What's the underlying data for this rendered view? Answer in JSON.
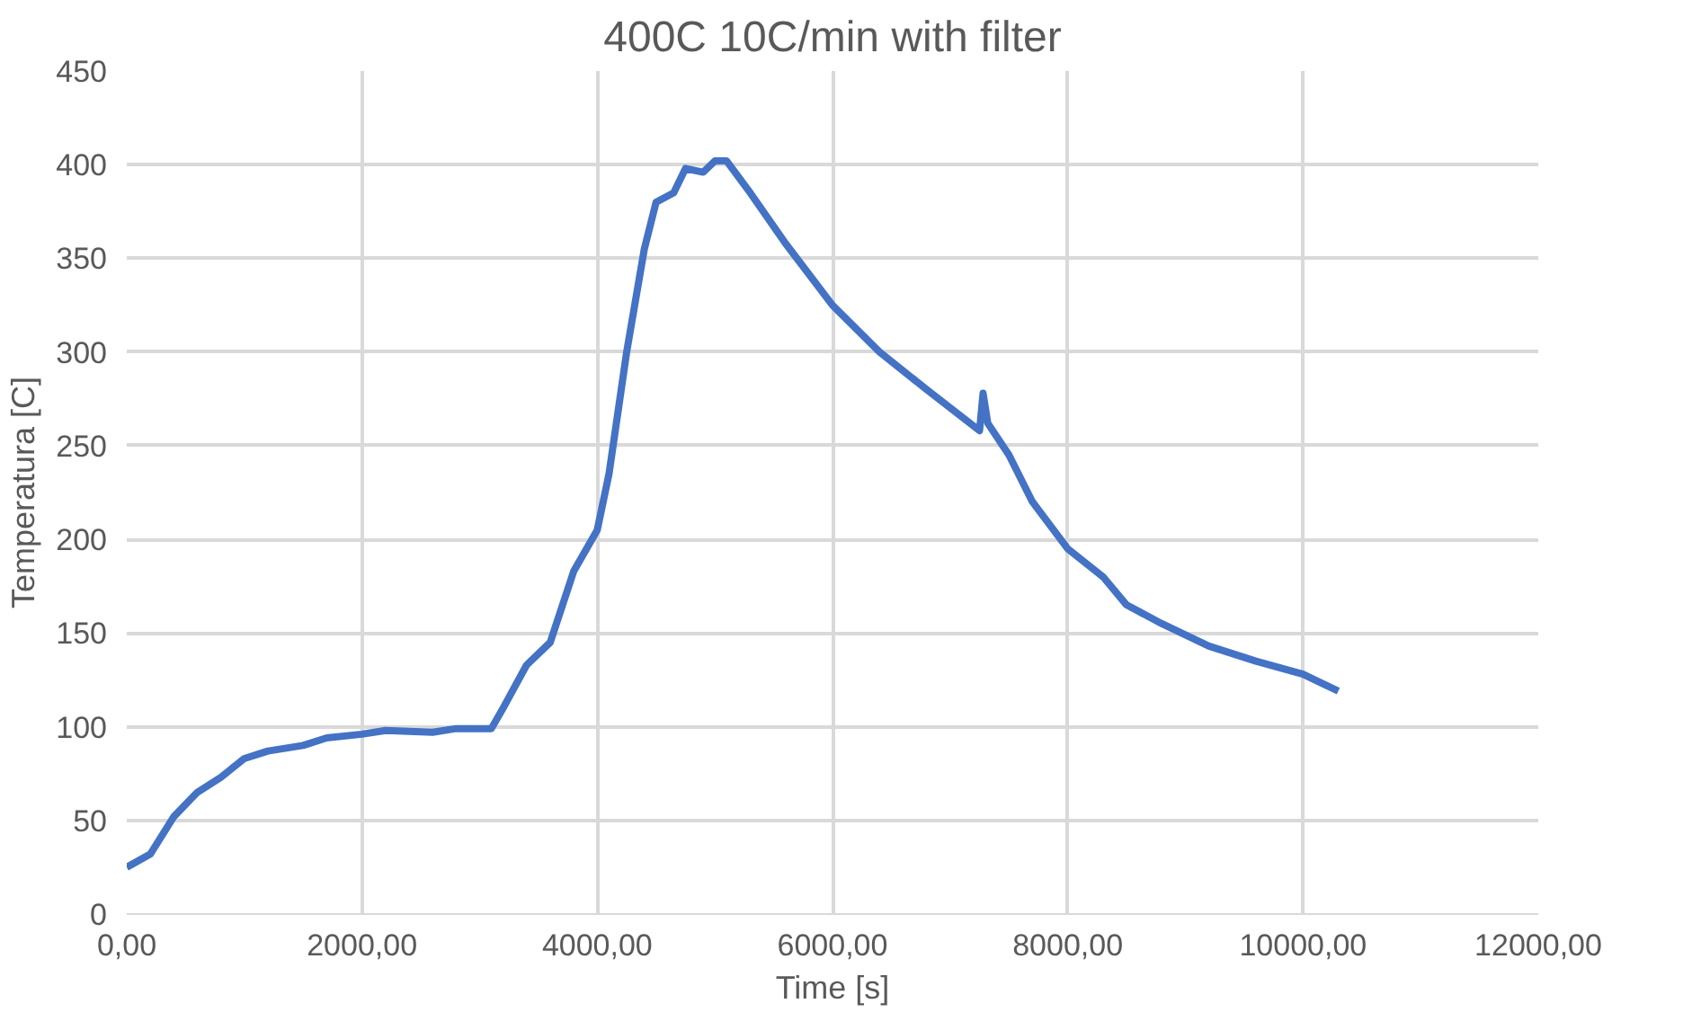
{
  "chart_data": {
    "type": "line",
    "title": "400C 10C/min with filter",
    "xlabel": "Time [s]",
    "ylabel": "Temperatura [C]",
    "x": [
      0,
      200,
      400,
      600,
      800,
      1000,
      1200,
      1500,
      1700,
      2000,
      2200,
      2600,
      2800,
      3100,
      3200,
      3400,
      3600,
      3800,
      4000,
      4100,
      4250,
      4400,
      4500,
      4650,
      4750,
      4900,
      5000,
      5100,
      5300,
      5600,
      6000,
      6400,
      6800,
      7250,
      7280,
      7320,
      7500,
      7700,
      8000,
      8300,
      8500,
      8800,
      9200,
      9600,
      10000,
      10300
    ],
    "series": [
      {
        "color": "#4472c4",
        "values": [
          25,
          32,
          52,
          65,
          73,
          83,
          87,
          90,
          94,
          96,
          98,
          97,
          99,
          99,
          110,
          133,
          145,
          183,
          205,
          235,
          300,
          355,
          380,
          385,
          398,
          396,
          402,
          402,
          385,
          358,
          325,
          300,
          280,
          258,
          278,
          262,
          245,
          220,
          195,
          180,
          165,
          155,
          143,
          135,
          128,
          119
        ]
      }
    ],
    "xlim": [
      0,
      12000
    ],
    "ylim": [
      0,
      450
    ],
    "xticks": [
      {
        "value": 0,
        "label": "0,00"
      },
      {
        "value": 2000,
        "label": "2000,00"
      },
      {
        "value": 4000,
        "label": "4000,00"
      },
      {
        "value": 6000,
        "label": "6000,00"
      },
      {
        "value": 8000,
        "label": "8000,00"
      },
      {
        "value": 10000,
        "label": "10000,00"
      },
      {
        "value": 12000,
        "label": "12000,00"
      }
    ],
    "yticks": [
      0,
      50,
      100,
      150,
      200,
      250,
      300,
      350,
      400,
      450
    ],
    "grid": true,
    "marker": "none",
    "line_style": "solid"
  }
}
